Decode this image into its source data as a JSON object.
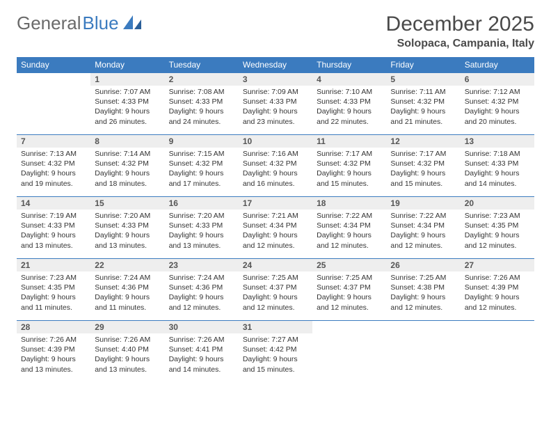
{
  "brand": {
    "part1": "General",
    "part2": "Blue",
    "color_gray": "#6a6a6a",
    "color_blue": "#3b7bbf"
  },
  "title": "December 2025",
  "location": "Solopaca, Campania, Italy",
  "header_bg": "#3b7bbf",
  "header_text_color": "#ffffff",
  "daynum_bg": "#eeeeee",
  "body_text_color": "#333333",
  "cell_border_color": "#3b7bbf",
  "font_family": "Arial",
  "title_fontsize": 30,
  "location_fontsize": 16,
  "th_fontsize": 12,
  "cell_fontsize": 10.5,
  "weekdays": [
    "Sunday",
    "Monday",
    "Tuesday",
    "Wednesday",
    "Thursday",
    "Friday",
    "Saturday"
  ],
  "weeks": [
    [
      {
        "day": "",
        "lines": [
          "",
          "",
          "",
          ""
        ]
      },
      {
        "day": "1",
        "lines": [
          "Sunrise: 7:07 AM",
          "Sunset: 4:33 PM",
          "Daylight: 9 hours",
          "and 26 minutes."
        ]
      },
      {
        "day": "2",
        "lines": [
          "Sunrise: 7:08 AM",
          "Sunset: 4:33 PM",
          "Daylight: 9 hours",
          "and 24 minutes."
        ]
      },
      {
        "day": "3",
        "lines": [
          "Sunrise: 7:09 AM",
          "Sunset: 4:33 PM",
          "Daylight: 9 hours",
          "and 23 minutes."
        ]
      },
      {
        "day": "4",
        "lines": [
          "Sunrise: 7:10 AM",
          "Sunset: 4:33 PM",
          "Daylight: 9 hours",
          "and 22 minutes."
        ]
      },
      {
        "day": "5",
        "lines": [
          "Sunrise: 7:11 AM",
          "Sunset: 4:32 PM",
          "Daylight: 9 hours",
          "and 21 minutes."
        ]
      },
      {
        "day": "6",
        "lines": [
          "Sunrise: 7:12 AM",
          "Sunset: 4:32 PM",
          "Daylight: 9 hours",
          "and 20 minutes."
        ]
      }
    ],
    [
      {
        "day": "7",
        "lines": [
          "Sunrise: 7:13 AM",
          "Sunset: 4:32 PM",
          "Daylight: 9 hours",
          "and 19 minutes."
        ]
      },
      {
        "day": "8",
        "lines": [
          "Sunrise: 7:14 AM",
          "Sunset: 4:32 PM",
          "Daylight: 9 hours",
          "and 18 minutes."
        ]
      },
      {
        "day": "9",
        "lines": [
          "Sunrise: 7:15 AM",
          "Sunset: 4:32 PM",
          "Daylight: 9 hours",
          "and 17 minutes."
        ]
      },
      {
        "day": "10",
        "lines": [
          "Sunrise: 7:16 AM",
          "Sunset: 4:32 PM",
          "Daylight: 9 hours",
          "and 16 minutes."
        ]
      },
      {
        "day": "11",
        "lines": [
          "Sunrise: 7:17 AM",
          "Sunset: 4:32 PM",
          "Daylight: 9 hours",
          "and 15 minutes."
        ]
      },
      {
        "day": "12",
        "lines": [
          "Sunrise: 7:17 AM",
          "Sunset: 4:32 PM",
          "Daylight: 9 hours",
          "and 15 minutes."
        ]
      },
      {
        "day": "13",
        "lines": [
          "Sunrise: 7:18 AM",
          "Sunset: 4:33 PM",
          "Daylight: 9 hours",
          "and 14 minutes."
        ]
      }
    ],
    [
      {
        "day": "14",
        "lines": [
          "Sunrise: 7:19 AM",
          "Sunset: 4:33 PM",
          "Daylight: 9 hours",
          "and 13 minutes."
        ]
      },
      {
        "day": "15",
        "lines": [
          "Sunrise: 7:20 AM",
          "Sunset: 4:33 PM",
          "Daylight: 9 hours",
          "and 13 minutes."
        ]
      },
      {
        "day": "16",
        "lines": [
          "Sunrise: 7:20 AM",
          "Sunset: 4:33 PM",
          "Daylight: 9 hours",
          "and 13 minutes."
        ]
      },
      {
        "day": "17",
        "lines": [
          "Sunrise: 7:21 AM",
          "Sunset: 4:34 PM",
          "Daylight: 9 hours",
          "and 12 minutes."
        ]
      },
      {
        "day": "18",
        "lines": [
          "Sunrise: 7:22 AM",
          "Sunset: 4:34 PM",
          "Daylight: 9 hours",
          "and 12 minutes."
        ]
      },
      {
        "day": "19",
        "lines": [
          "Sunrise: 7:22 AM",
          "Sunset: 4:34 PM",
          "Daylight: 9 hours",
          "and 12 minutes."
        ]
      },
      {
        "day": "20",
        "lines": [
          "Sunrise: 7:23 AM",
          "Sunset: 4:35 PM",
          "Daylight: 9 hours",
          "and 12 minutes."
        ]
      }
    ],
    [
      {
        "day": "21",
        "lines": [
          "Sunrise: 7:23 AM",
          "Sunset: 4:35 PM",
          "Daylight: 9 hours",
          "and 11 minutes."
        ]
      },
      {
        "day": "22",
        "lines": [
          "Sunrise: 7:24 AM",
          "Sunset: 4:36 PM",
          "Daylight: 9 hours",
          "and 11 minutes."
        ]
      },
      {
        "day": "23",
        "lines": [
          "Sunrise: 7:24 AM",
          "Sunset: 4:36 PM",
          "Daylight: 9 hours",
          "and 12 minutes."
        ]
      },
      {
        "day": "24",
        "lines": [
          "Sunrise: 7:25 AM",
          "Sunset: 4:37 PM",
          "Daylight: 9 hours",
          "and 12 minutes."
        ]
      },
      {
        "day": "25",
        "lines": [
          "Sunrise: 7:25 AM",
          "Sunset: 4:37 PM",
          "Daylight: 9 hours",
          "and 12 minutes."
        ]
      },
      {
        "day": "26",
        "lines": [
          "Sunrise: 7:25 AM",
          "Sunset: 4:38 PM",
          "Daylight: 9 hours",
          "and 12 minutes."
        ]
      },
      {
        "day": "27",
        "lines": [
          "Sunrise: 7:26 AM",
          "Sunset: 4:39 PM",
          "Daylight: 9 hours",
          "and 12 minutes."
        ]
      }
    ],
    [
      {
        "day": "28",
        "lines": [
          "Sunrise: 7:26 AM",
          "Sunset: 4:39 PM",
          "Daylight: 9 hours",
          "and 13 minutes."
        ]
      },
      {
        "day": "29",
        "lines": [
          "Sunrise: 7:26 AM",
          "Sunset: 4:40 PM",
          "Daylight: 9 hours",
          "and 13 minutes."
        ]
      },
      {
        "day": "30",
        "lines": [
          "Sunrise: 7:26 AM",
          "Sunset: 4:41 PM",
          "Daylight: 9 hours",
          "and 14 minutes."
        ]
      },
      {
        "day": "31",
        "lines": [
          "Sunrise: 7:27 AM",
          "Sunset: 4:42 PM",
          "Daylight: 9 hours",
          "and 15 minutes."
        ]
      },
      {
        "day": "",
        "lines": [
          "",
          "",
          "",
          ""
        ]
      },
      {
        "day": "",
        "lines": [
          "",
          "",
          "",
          ""
        ]
      },
      {
        "day": "",
        "lines": [
          "",
          "",
          "",
          ""
        ]
      }
    ]
  ]
}
